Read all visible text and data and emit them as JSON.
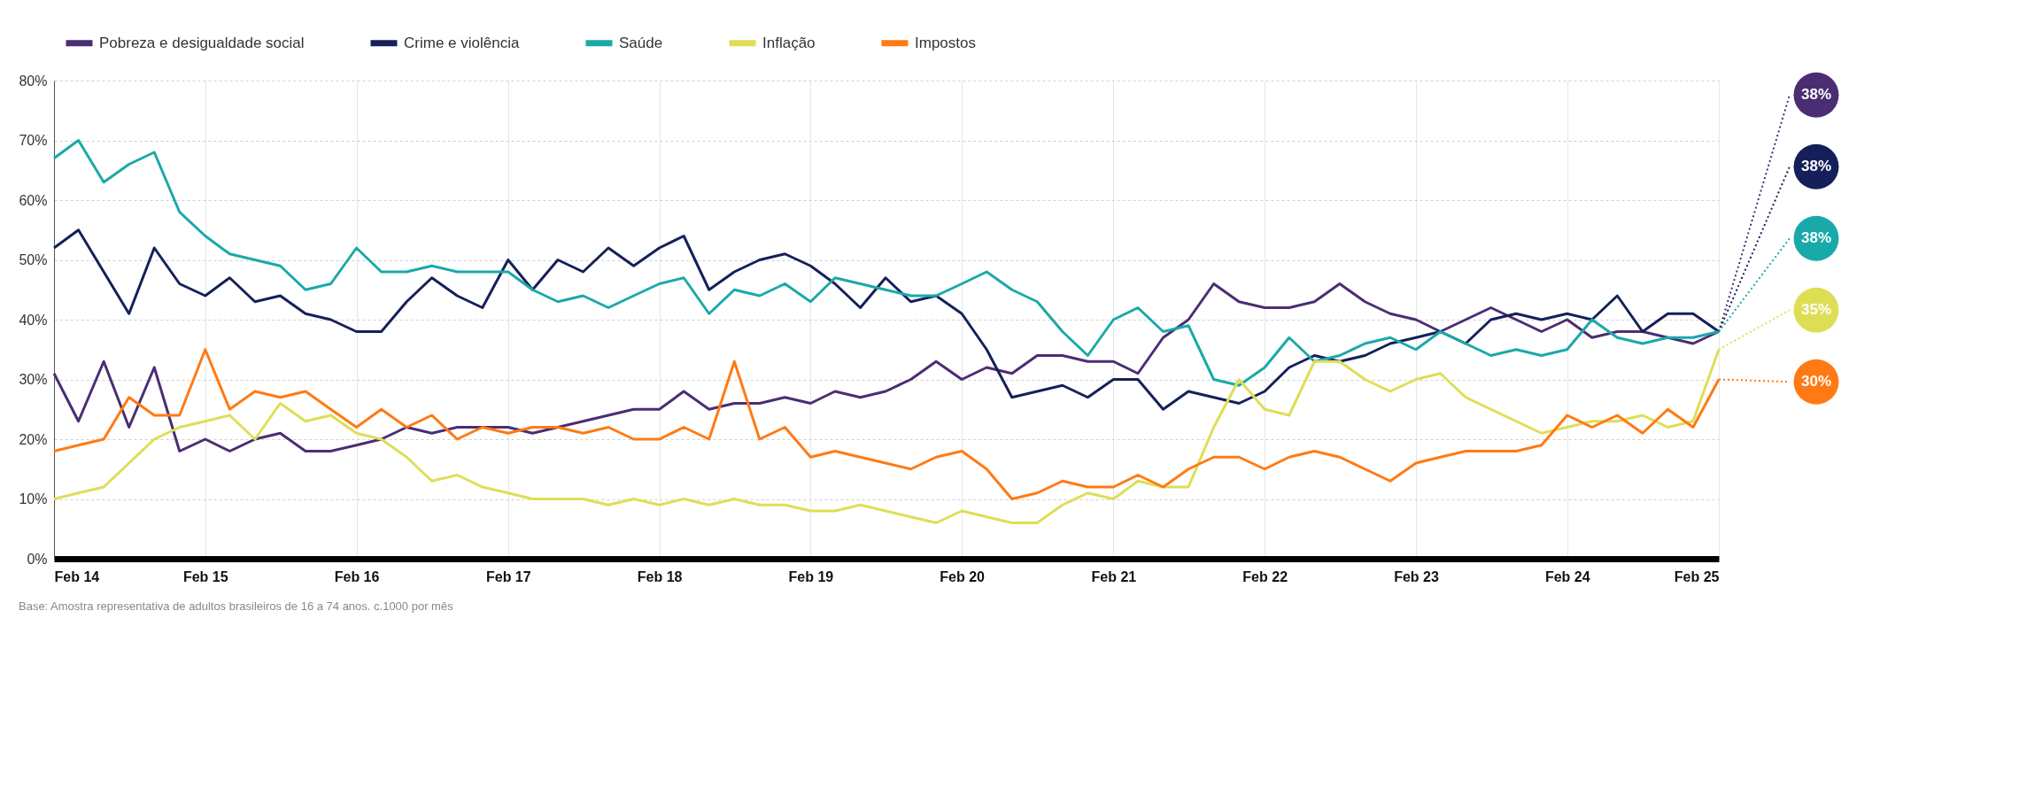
{
  "chart_data": {
    "type": "line",
    "x": [
      "2014-02",
      "2014-04",
      "2014-06",
      "2014-08",
      "2014-10",
      "2014-12",
      "2015-02",
      "2015-04",
      "2015-06",
      "2015-08",
      "2015-10",
      "2015-12",
      "2016-02",
      "2016-04",
      "2016-06",
      "2016-08",
      "2016-10",
      "2016-12",
      "2017-02",
      "2017-04",
      "2017-06",
      "2017-08",
      "2017-10",
      "2017-12",
      "2018-02",
      "2018-04",
      "2018-06",
      "2018-08",
      "2018-10",
      "2018-12",
      "2019-02",
      "2019-04",
      "2019-06",
      "2019-08",
      "2019-10",
      "2019-12",
      "2020-02",
      "2020-04",
      "2020-06",
      "2020-08",
      "2020-10",
      "2020-12",
      "2021-02",
      "2021-04",
      "2021-06",
      "2021-08",
      "2021-10",
      "2021-12",
      "2022-02",
      "2022-04",
      "2022-06",
      "2022-08",
      "2022-10",
      "2022-12",
      "2023-02",
      "2023-04",
      "2023-06",
      "2023-08",
      "2023-10",
      "2023-12",
      "2024-02",
      "2024-04",
      "2024-06",
      "2024-08",
      "2024-10",
      "2024-12",
      "2025-02"
    ],
    "series": [
      {
        "name": "Pobreza e desigualdade social",
        "color": "#4b2d73",
        "values": [
          31,
          23,
          33,
          22,
          32,
          18,
          20,
          18,
          20,
          21,
          18,
          18,
          19,
          20,
          22,
          21,
          22,
          22,
          22,
          21,
          22,
          23,
          24,
          25,
          25,
          28,
          25,
          26,
          26,
          27,
          26,
          28,
          27,
          28,
          30,
          33,
          30,
          32,
          31,
          34,
          34,
          33,
          33,
          31,
          37,
          40,
          46,
          43,
          42,
          42,
          43,
          46,
          43,
          41,
          40,
          38,
          40,
          42,
          40,
          38,
          40,
          37,
          38,
          38,
          37,
          36,
          38
        ],
        "value_labels": [
          null,
          null,
          null,
          null,
          null,
          null,
          null,
          null,
          null,
          null,
          null,
          null,
          null,
          null,
          null,
          null,
          null,
          null,
          null,
          null,
          null,
          null,
          null,
          null,
          null,
          null,
          null,
          null,
          null,
          null,
          null,
          null,
          null,
          null,
          null,
          null,
          null,
          null,
          null,
          null,
          null,
          null,
          null,
          null,
          null,
          null,
          null,
          null,
          null,
          null,
          null,
          null,
          null,
          null,
          null,
          null,
          null,
          null,
          null,
          null,
          null,
          null,
          null,
          null,
          null,
          null,
          "38%"
        ]
      },
      {
        "name": "Crime e violência",
        "color": "#15205a",
        "values": [
          52,
          55,
          48,
          41,
          52,
          46,
          44,
          47,
          43,
          44,
          41,
          40,
          38,
          38,
          43,
          47,
          44,
          42,
          50,
          45,
          50,
          48,
          52,
          49,
          52,
          54,
          45,
          48,
          50,
          51,
          49,
          46,
          42,
          47,
          43,
          44,
          41,
          35,
          27,
          28,
          29,
          27,
          30,
          30,
          25,
          28,
          27,
          26,
          28,
          32,
          34,
          33,
          34,
          36,
          37,
          38,
          36,
          40,
          41,
          40,
          41,
          40,
          44,
          38,
          41,
          41,
          38
        ],
        "value_labels": [
          null,
          null,
          null,
          null,
          null,
          null,
          null,
          null,
          null,
          null,
          null,
          null,
          null,
          null,
          null,
          null,
          null,
          null,
          null,
          null,
          null,
          null,
          null,
          null,
          null,
          null,
          null,
          null,
          null,
          null,
          null,
          null,
          null,
          null,
          null,
          null,
          null,
          null,
          null,
          null,
          null,
          null,
          null,
          null,
          null,
          null,
          null,
          null,
          null,
          null,
          null,
          null,
          null,
          null,
          null,
          null,
          null,
          null,
          null,
          null,
          null,
          null,
          null,
          null,
          null,
          null,
          "38%"
        ]
      },
      {
        "name": "Saúde",
        "color": "#1aa9a9",
        "values": [
          67,
          70,
          63,
          66,
          68,
          58,
          54,
          51,
          50,
          49,
          45,
          46,
          52,
          48,
          48,
          49,
          48,
          48,
          48,
          45,
          43,
          44,
          42,
          44,
          46,
          47,
          41,
          45,
          44,
          46,
          43,
          47,
          46,
          45,
          44,
          44,
          46,
          48,
          45,
          43,
          38,
          34,
          40,
          42,
          38,
          39,
          30,
          29,
          32,
          37,
          33,
          34,
          36,
          37,
          35,
          38,
          36,
          34,
          35,
          34,
          35,
          40,
          37,
          36,
          37,
          37,
          38
        ],
        "value_labels": [
          null,
          null,
          null,
          null,
          null,
          null,
          null,
          null,
          null,
          null,
          null,
          null,
          null,
          null,
          null,
          null,
          null,
          null,
          null,
          null,
          null,
          null,
          null,
          null,
          null,
          null,
          null,
          null,
          null,
          null,
          null,
          null,
          null,
          null,
          null,
          null,
          null,
          null,
          null,
          null,
          null,
          null,
          null,
          null,
          null,
          null,
          null,
          null,
          null,
          null,
          null,
          null,
          null,
          null,
          null,
          null,
          null,
          null,
          null,
          null,
          null,
          null,
          null,
          null,
          null,
          null,
          "38%"
        ]
      },
      {
        "name": "Inflação",
        "color": "#dede55",
        "values": [
          10,
          11,
          12,
          16,
          20,
          22,
          23,
          24,
          20,
          26,
          23,
          24,
          21,
          20,
          17,
          13,
          14,
          12,
          11,
          10,
          10,
          10,
          9,
          10,
          9,
          10,
          9,
          10,
          9,
          9,
          8,
          8,
          9,
          8,
          7,
          6,
          8,
          7,
          6,
          6,
          9,
          11,
          10,
          13,
          12,
          12,
          22,
          30,
          25,
          24,
          33,
          33,
          30,
          28,
          30,
          31,
          27,
          25,
          23,
          21,
          22,
          23,
          23,
          24,
          22,
          23,
          35
        ],
        "value_labels": [
          null,
          null,
          null,
          null,
          null,
          null,
          null,
          null,
          null,
          null,
          null,
          null,
          null,
          null,
          null,
          null,
          null,
          null,
          null,
          null,
          null,
          null,
          null,
          null,
          null,
          null,
          null,
          null,
          null,
          null,
          null,
          null,
          null,
          null,
          null,
          null,
          null,
          null,
          null,
          null,
          null,
          null,
          null,
          null,
          null,
          null,
          null,
          null,
          null,
          null,
          null,
          null,
          null,
          null,
          null,
          null,
          null,
          null,
          null,
          null,
          null,
          null,
          null,
          null,
          null,
          null,
          "35%"
        ]
      },
      {
        "name": "Impostos",
        "color": "#ff7a14",
        "values": [
          18,
          19,
          20,
          27,
          24,
          24,
          35,
          25,
          28,
          27,
          28,
          25,
          22,
          25,
          22,
          24,
          20,
          22,
          21,
          22,
          22,
          21,
          22,
          20,
          20,
          22,
          20,
          33,
          20,
          22,
          17,
          18,
          17,
          16,
          15,
          17,
          18,
          15,
          10,
          11,
          13,
          12,
          12,
          14,
          12,
          15,
          17,
          17,
          15,
          17,
          18,
          17,
          15,
          13,
          16,
          17,
          18,
          18,
          18,
          19,
          24,
          22,
          24,
          21,
          25,
          22,
          30
        ],
        "value_labels": [
          null,
          null,
          null,
          null,
          null,
          null,
          null,
          null,
          null,
          null,
          null,
          null,
          null,
          null,
          null,
          null,
          null,
          null,
          null,
          null,
          null,
          null,
          null,
          null,
          null,
          null,
          null,
          null,
          null,
          null,
          null,
          null,
          null,
          null,
          null,
          null,
          null,
          null,
          null,
          null,
          null,
          null,
          null,
          null,
          null,
          null,
          null,
          null,
          null,
          null,
          null,
          null,
          null,
          null,
          null,
          null,
          null,
          null,
          null,
          null,
          null,
          null,
          null,
          null,
          null,
          null,
          "30%"
        ]
      }
    ],
    "xlim": [
      "2014-02",
      "2025-02"
    ],
    "xticks": [
      {
        "value": "2014-02",
        "label": "Feb 14"
      },
      {
        "value": "2015-02",
        "label": "Feb 15"
      },
      {
        "value": "2016-02",
        "label": "Feb 16"
      },
      {
        "value": "2017-02",
        "label": "Feb 17"
      },
      {
        "value": "2018-02",
        "label": "Feb 18"
      },
      {
        "value": "2019-02",
        "label": "Feb 19"
      },
      {
        "value": "2020-02",
        "label": "Feb 20"
      },
      {
        "value": "2021-02",
        "label": "Feb 21"
      },
      {
        "value": "2022-02",
        "label": "Feb 22"
      },
      {
        "value": "2023-02",
        "label": "Feb 23"
      },
      {
        "value": "2024-02",
        "label": "Feb 24"
      },
      {
        "value": "2025-02",
        "label": "Feb 25"
      }
    ],
    "ylim": [
      0,
      80
    ],
    "yticks": [
      {
        "value": 0,
        "label": "0%"
      },
      {
        "value": 10,
        "label": "10%"
      },
      {
        "value": 20,
        "label": "20%"
      },
      {
        "value": 30,
        "label": "30%"
      },
      {
        "value": 40,
        "label": "40%"
      },
      {
        "value": 50,
        "label": "50%"
      },
      {
        "value": 60,
        "label": "60%"
      },
      {
        "value": 70,
        "label": "70%"
      },
      {
        "value": 80,
        "label": "80%"
      }
    ],
    "grid": true,
    "legend": "top",
    "line_style": "solid",
    "annotations": [
      "Base: Amostra representativa de adultos brasileiros de 16 a 74 anos. c.1000 por mês"
    ]
  }
}
